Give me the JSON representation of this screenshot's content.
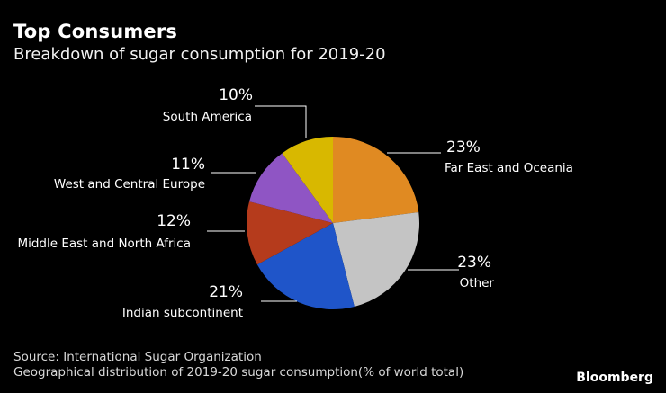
{
  "chart_data": {
    "type": "pie",
    "title": "Top Consumers",
    "subtitle": "Breakdown of sugar consumption for 2019-20",
    "categories": [
      "Far East and Oceania",
      "Other",
      "Indian subcontinent",
      "Middle East and North Africa",
      "West and Central Europe",
      "South America"
    ],
    "values": [
      23,
      23,
      21,
      12,
      11,
      10
    ],
    "value_labels": [
      "23%",
      "23%",
      "21%",
      "12%",
      "11%",
      "10%"
    ],
    "colors": [
      "#e08a22",
      "#c4c4c4",
      "#1f55c9",
      "#b53b1c",
      "#8f55c4",
      "#d8b800"
    ],
    "start": "12 o'clock",
    "direction": "clockwise"
  },
  "source": "Source: International Sugar Organization",
  "note": "Geographical distribution of 2019-20 sugar consumption(% of world total)",
  "brand": "Bloomberg"
}
